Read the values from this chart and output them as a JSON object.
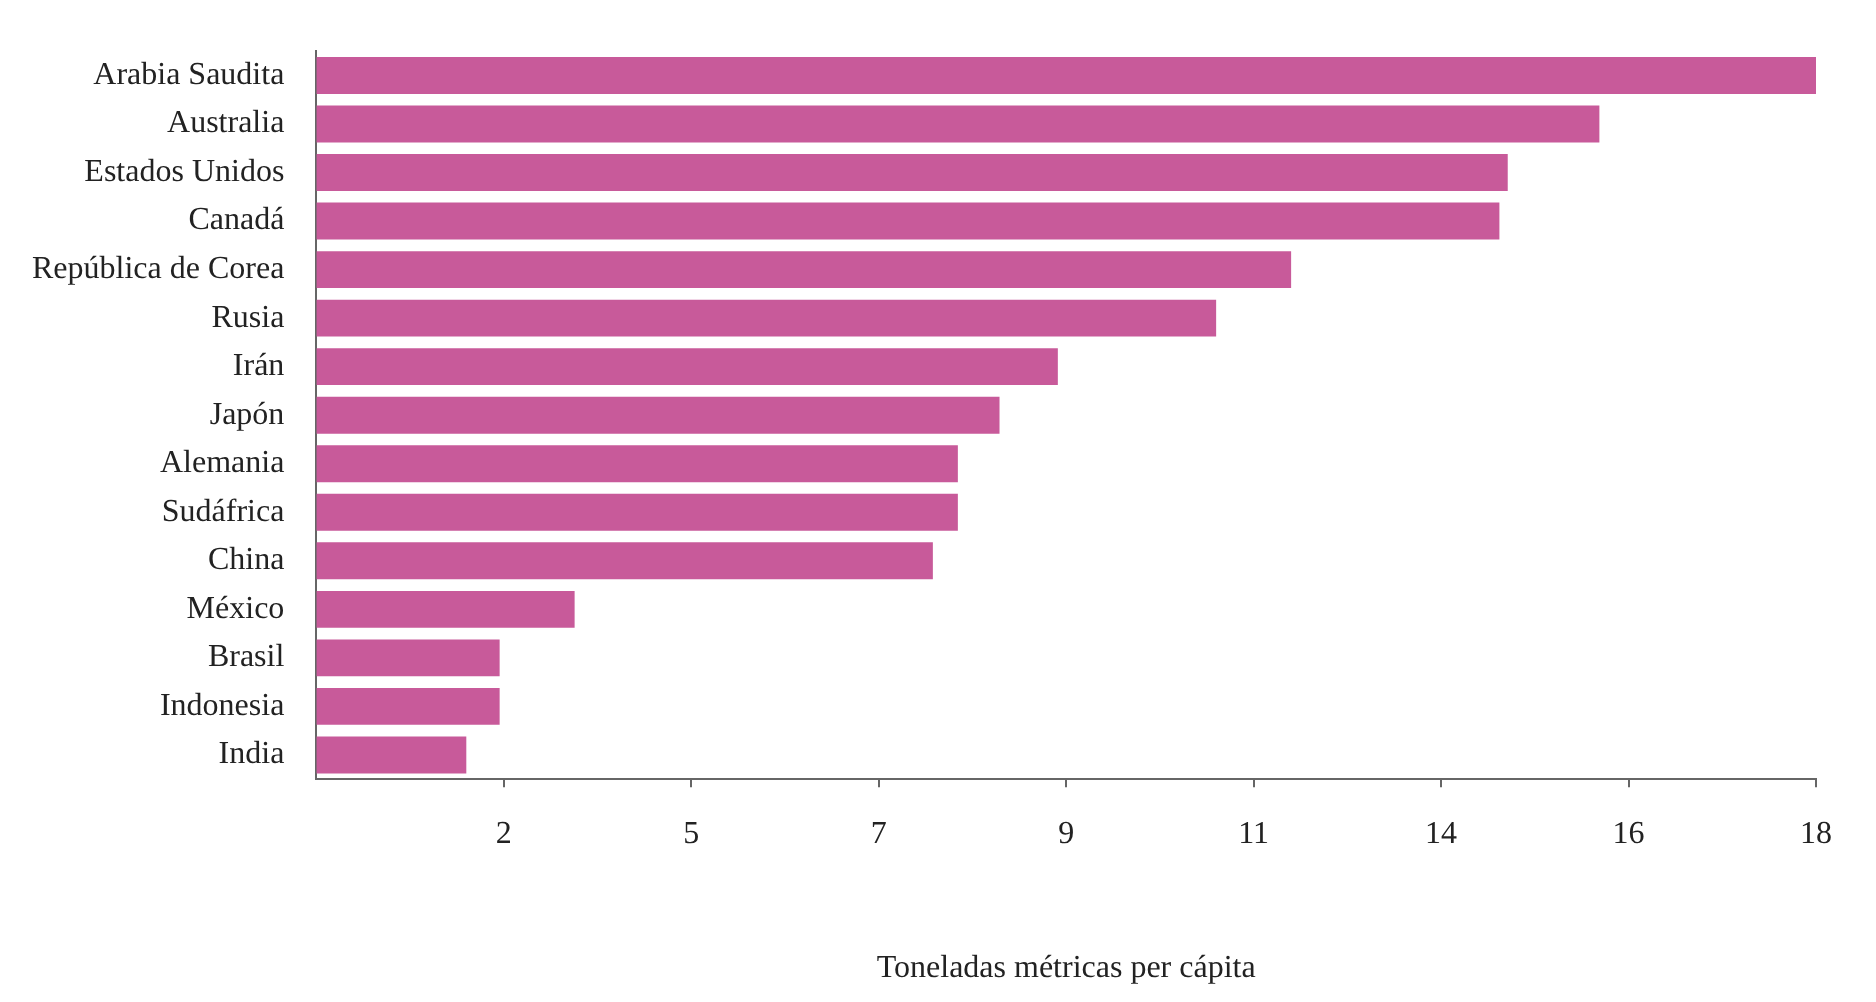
{
  "chart_data": {
    "type": "bar",
    "orientation": "horizontal",
    "xlabel": "Toneladas métricas per cápita",
    "categories": [
      "Arabia Saudita",
      "Australia",
      "Estados Unidos",
      "Canadá",
      "República de Corea",
      "Rusia",
      "Irán",
      "Japón",
      "Alemania",
      "Sudáfrica",
      "China",
      "México",
      "Brasil",
      "Indonesia",
      "India"
    ],
    "values": [
      18,
      15.4,
      14.3,
      14.2,
      11.7,
      10.8,
      8.9,
      8.2,
      7.7,
      7.7,
      7.4,
      3.1,
      2.2,
      2.2,
      1.8
    ],
    "color": "#c85a9a",
    "xlim": [
      0,
      18
    ],
    "xticks": [
      {
        "value": 2.25,
        "label": "2"
      },
      {
        "value": 4.5,
        "label": "5"
      },
      {
        "value": 6.75,
        "label": "7"
      },
      {
        "value": 9,
        "label": "9"
      },
      {
        "value": 11.25,
        "label": "11"
      },
      {
        "value": 13.5,
        "label": "14"
      },
      {
        "value": 15.75,
        "label": "16"
      },
      {
        "value": 18,
        "label": "18"
      }
    ],
    "grid": false,
    "legend": false
  }
}
